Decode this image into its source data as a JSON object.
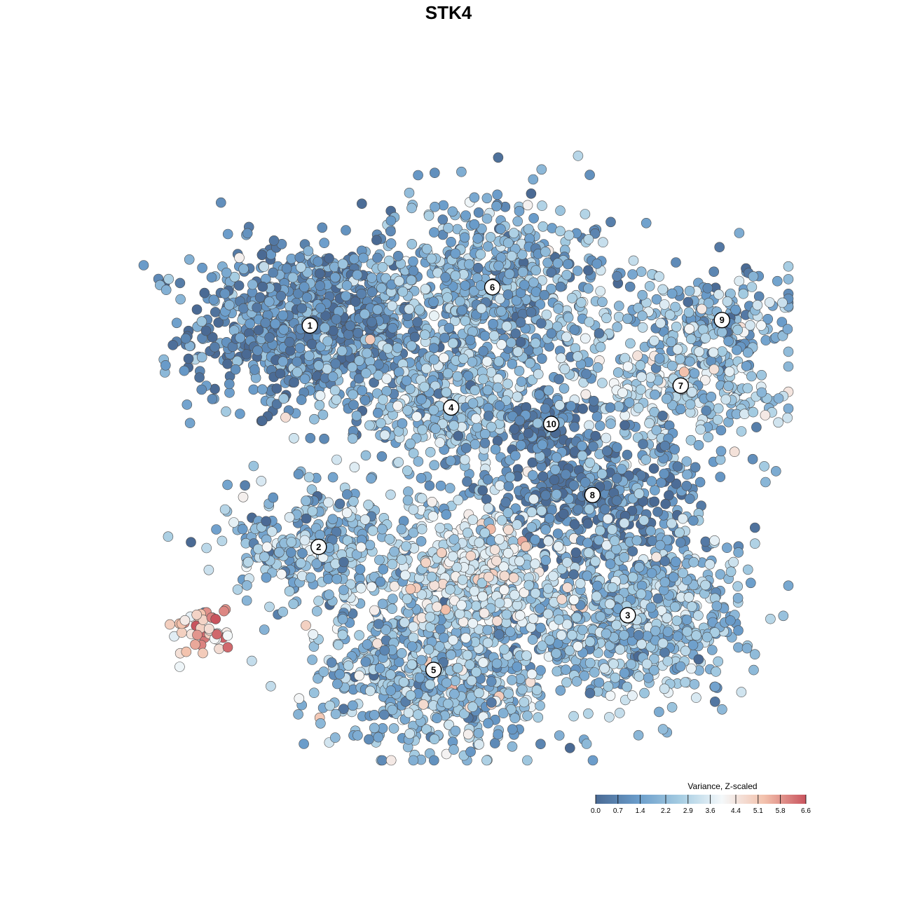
{
  "chart_data": {
    "type": "scatter",
    "title": "STK4",
    "color_scale": {
      "title": "Variance, Z-scaled",
      "min": 0.0,
      "max": 6.6,
      "ticks": [
        "0.0",
        "0.7",
        "1.4",
        "2.2",
        "2.9",
        "3.6",
        "4.4",
        "5.1",
        "5.8",
        "6.6"
      ],
      "colors": [
        "#4a6a94",
        "#6a9cca",
        "#a5cce2",
        "#f4f8fa",
        "#f3c2ad",
        "#c9545e"
      ]
    },
    "clusters": [
      {
        "id": "1",
        "x": 0.205,
        "y": 0.725,
        "mean": 1.1,
        "spread": 0.1,
        "count": 900
      },
      {
        "id": "6",
        "x": 0.515,
        "y": 0.795,
        "mean": 1.8,
        "spread": 0.11,
        "count": 650
      },
      {
        "id": "9",
        "x": 0.905,
        "y": 0.735,
        "mean": 1.6,
        "spread": 0.07,
        "count": 150
      },
      {
        "id": "7",
        "x": 0.835,
        "y": 0.615,
        "mean": 2.6,
        "spread": 0.09,
        "count": 330
      },
      {
        "id": "4",
        "x": 0.445,
        "y": 0.575,
        "mean": 2.2,
        "spread": 0.08,
        "count": 380
      },
      {
        "id": "10",
        "x": 0.615,
        "y": 0.545,
        "mean": 0.4,
        "spread": 0.04,
        "count": 110
      },
      {
        "id": "8",
        "x": 0.685,
        "y": 0.415,
        "mean": 0.9,
        "spread": 0.09,
        "count": 420
      },
      {
        "id": "2",
        "x": 0.22,
        "y": 0.32,
        "mean": 2.2,
        "spread": 0.08,
        "count": 320
      },
      {
        "id": "3",
        "x": 0.745,
        "y": 0.195,
        "mean": 2.2,
        "spread": 0.1,
        "count": 700
      },
      {
        "id": "5",
        "x": 0.415,
        "y": 0.095,
        "mean": 2.1,
        "spread": 0.1,
        "count": 650
      }
    ],
    "extra_groups": [
      {
        "x": 0.49,
        "y": 0.27,
        "mean": 3.4,
        "spread": 0.07,
        "count": 400
      },
      {
        "x": 0.02,
        "y": 0.17,
        "mean": 5.3,
        "spread": 0.03,
        "count": 45
      }
    ],
    "xlim": [
      0,
      1
    ],
    "ylim": [
      0,
      1
    ],
    "axes_visible": false,
    "grid": false,
    "legend_position": "bottom-right"
  }
}
